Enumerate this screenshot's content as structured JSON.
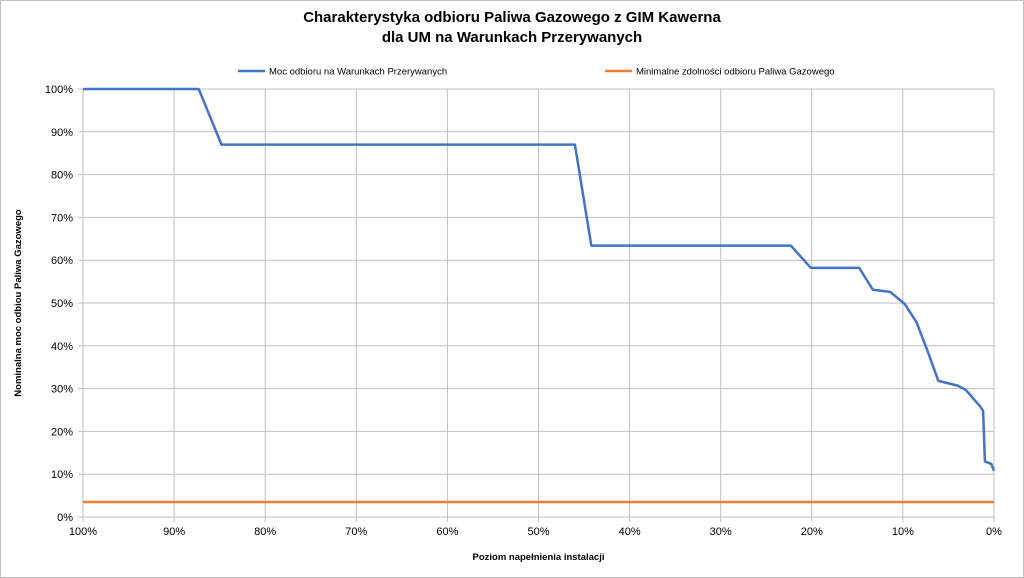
{
  "chart_data": {
    "type": "line",
    "title": [
      "Charakterystyka odbioru Paliwa Gazowego z GIM Kawerna",
      "dla UM na Warunkach Przerywanych"
    ],
    "xlabel": "Poziom napełnienia instalacji",
    "ylabel": "Nominalna moc odbiou Paliwa Gazowego",
    "x_reversed": true,
    "xlim": [
      100,
      0
    ],
    "ylim": [
      0,
      100
    ],
    "x_ticks": [
      "100%",
      "90%",
      "80%",
      "70%",
      "60%",
      "50%",
      "40%",
      "30%",
      "20%",
      "10%",
      "0%"
    ],
    "y_ticks": [
      "0%",
      "10%",
      "20%",
      "30%",
      "40%",
      "50%",
      "60%",
      "70%",
      "80%",
      "90%",
      "100%"
    ],
    "grid": true,
    "legend_position": "top",
    "series": [
      {
        "name": "Moc odbioru na Warunkach Przerywanych",
        "color": "#4472c4",
        "points": [
          [
            100,
            100
          ],
          [
            87.3,
            100
          ],
          [
            84.8,
            87
          ],
          [
            46,
            87
          ],
          [
            44.2,
            63.4
          ],
          [
            22.3,
            63.4
          ],
          [
            20.1,
            58.2
          ],
          [
            14.8,
            58.2
          ],
          [
            13.3,
            53.1
          ],
          [
            11.4,
            52.6
          ],
          [
            9.8,
            49.8
          ],
          [
            8.5,
            45.5
          ],
          [
            7.3,
            38.8
          ],
          [
            6.1,
            31.8
          ],
          [
            4,
            30.7
          ],
          [
            3.1,
            29.7
          ],
          [
            1.5,
            25.8
          ],
          [
            1.2,
            24.8
          ],
          [
            1,
            13
          ],
          [
            0.3,
            12.4
          ],
          [
            0,
            10.8
          ]
        ]
      },
      {
        "name": "Minimalne zdolności odbioru Paliwa Gazowego",
        "color": "#ed7d31",
        "points": [
          [
            100,
            3.5
          ],
          [
            0,
            3.5
          ]
        ]
      }
    ]
  }
}
